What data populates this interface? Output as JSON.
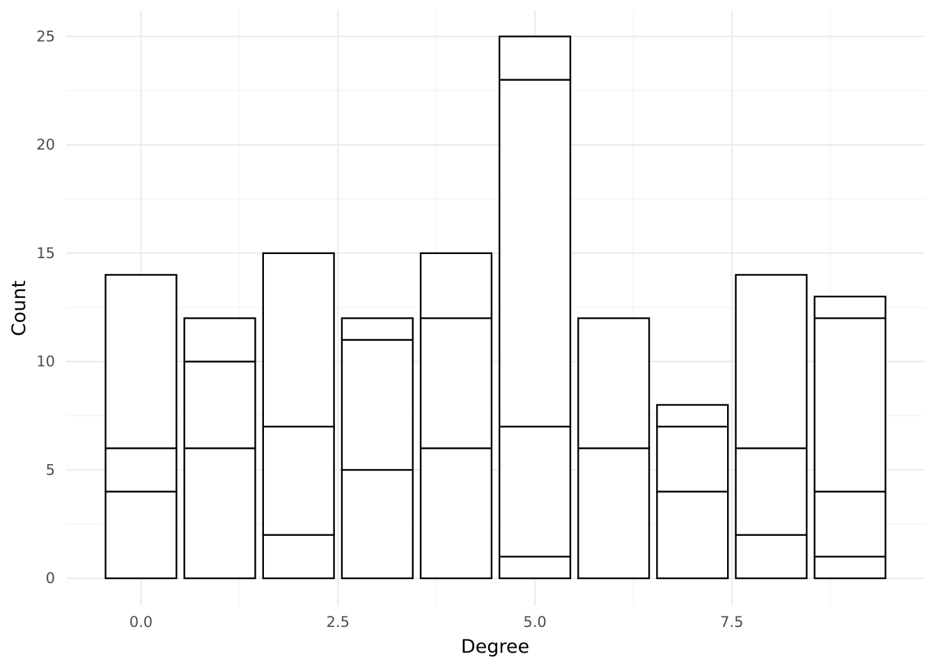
{
  "chart_data": {
    "type": "bar",
    "stacked": true,
    "xlabel": "Degree",
    "ylabel": "Count",
    "xlim": [
      -0.95,
      9.95
    ],
    "ylim": [
      -1.25,
      26.2
    ],
    "x_ticks": [
      {
        "value": 0,
        "label": "0.0"
      },
      {
        "value": 2.5,
        "label": "2.5"
      },
      {
        "value": 5,
        "label": "5.0"
      },
      {
        "value": 7.5,
        "label": "7.5"
      }
    ],
    "y_ticks": [
      {
        "value": 0,
        "label": "0"
      },
      {
        "value": 5,
        "label": "5"
      },
      {
        "value": 10,
        "label": "10"
      },
      {
        "value": 15,
        "label": "15"
      },
      {
        "value": 20,
        "label": "20"
      },
      {
        "value": 25,
        "label": "25"
      }
    ],
    "bar_width": 0.9,
    "grid": true,
    "fill_color": "#ffffff",
    "outline_color": "#000000",
    "bars": [
      {
        "x": 0,
        "segments": [
          4,
          2,
          8
        ],
        "total": 14
      },
      {
        "x": 1,
        "segments": [
          6,
          4,
          2
        ],
        "total": 12
      },
      {
        "x": 2,
        "segments": [
          2,
          5,
          8
        ],
        "total": 15
      },
      {
        "x": 3,
        "segments": [
          5,
          6,
          1
        ],
        "total": 12
      },
      {
        "x": 4,
        "segments": [
          6,
          6,
          3
        ],
        "total": 15
      },
      {
        "x": 5,
        "segments": [
          1,
          6,
          16,
          2
        ],
        "total": 25
      },
      {
        "x": 6,
        "segments": [
          6,
          6
        ],
        "total": 12
      },
      {
        "x": 7,
        "segments": [
          4,
          3,
          1
        ],
        "total": 8
      },
      {
        "x": 8,
        "segments": [
          2,
          4,
          8
        ],
        "total": 14
      },
      {
        "x": 9,
        "segments": [
          1,
          3,
          8,
          1
        ],
        "total": 13
      }
    ]
  }
}
